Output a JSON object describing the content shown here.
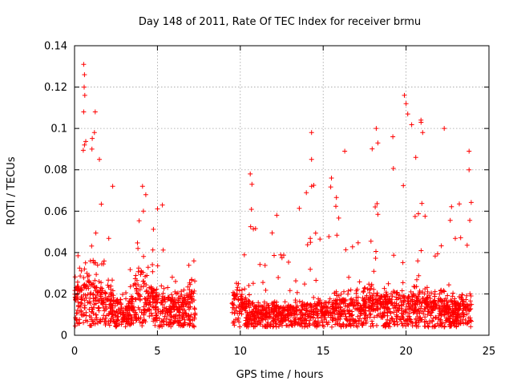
{
  "chart_data": {
    "type": "scatter",
    "title": "Day 148 of 2011, Rate Of TEC Index for receiver brmu",
    "xlabel": "GPS time / hours",
    "ylabel": "ROTI / TECUs",
    "xlim": [
      0,
      25
    ],
    "ylim": [
      0,
      0.14
    ],
    "xticks": [
      0,
      5,
      10,
      15,
      20,
      25
    ],
    "yticks": [
      0,
      0.02,
      0.04,
      0.06,
      0.08,
      0.1,
      0.12,
      0.14
    ],
    "xtick_labels": [
      "0",
      "5",
      "10",
      "15",
      "20",
      "25"
    ],
    "ytick_labels": [
      "0",
      "0.02",
      "0.04",
      "0.06",
      "0.08",
      "0.1",
      "0.12",
      "0.14"
    ],
    "grid": true,
    "marker": "+",
    "color": "#ff0000",
    "data_gap_hours": [
      7.3,
      9.5
    ],
    "notable_points": [
      {
        "x": 0.55,
        "y": 0.131
      },
      {
        "x": 0.6,
        "y": 0.126
      },
      {
        "x": 0.58,
        "y": 0.12
      },
      {
        "x": 0.62,
        "y": 0.116
      },
      {
        "x": 0.55,
        "y": 0.108
      },
      {
        "x": 1.25,
        "y": 0.108
      },
      {
        "x": 1.2,
        "y": 0.098
      },
      {
        "x": 0.6,
        "y": 0.092
      },
      {
        "x": 1.05,
        "y": 0.09
      },
      {
        "x": 1.5,
        "y": 0.085
      },
      {
        "x": 2.3,
        "y": 0.072
      },
      {
        "x": 4.1,
        "y": 0.072
      },
      {
        "x": 4.3,
        "y": 0.068
      },
      {
        "x": 5.3,
        "y": 0.063
      },
      {
        "x": 7.2,
        "y": 0.036
      },
      {
        "x": 10.6,
        "y": 0.078
      },
      {
        "x": 10.7,
        "y": 0.073
      },
      {
        "x": 12.2,
        "y": 0.058
      },
      {
        "x": 14.3,
        "y": 0.098
      },
      {
        "x": 14.3,
        "y": 0.085
      },
      {
        "x": 14.3,
        "y": 0.072
      },
      {
        "x": 15.5,
        "y": 0.076
      },
      {
        "x": 16.3,
        "y": 0.089
      },
      {
        "x": 18.2,
        "y": 0.1
      },
      {
        "x": 18.3,
        "y": 0.093
      },
      {
        "x": 19.2,
        "y": 0.096
      },
      {
        "x": 19.9,
        "y": 0.116
      },
      {
        "x": 20.0,
        "y": 0.112
      },
      {
        "x": 20.1,
        "y": 0.107
      },
      {
        "x": 20.9,
        "y": 0.104
      },
      {
        "x": 21.0,
        "y": 0.098
      },
      {
        "x": 22.3,
        "y": 0.1
      },
      {
        "x": 23.8,
        "y": 0.089
      },
      {
        "x": 23.8,
        "y": 0.08
      }
    ],
    "activity_profile": [
      {
        "x": 0.0,
        "base": 0.018,
        "spike": 0.035
      },
      {
        "x": 0.5,
        "base": 0.02,
        "spike": 0.13
      },
      {
        "x": 1.0,
        "base": 0.022,
        "spike": 0.1
      },
      {
        "x": 1.5,
        "base": 0.02,
        "spike": 0.085
      },
      {
        "x": 2.0,
        "base": 0.016,
        "spike": 0.05
      },
      {
        "x": 2.5,
        "base": 0.013,
        "spike": 0.045
      },
      {
        "x": 3.0,
        "base": 0.01,
        "spike": 0.04
      },
      {
        "x": 3.5,
        "base": 0.014,
        "spike": 0.05
      },
      {
        "x": 4.0,
        "base": 0.022,
        "spike": 0.072
      },
      {
        "x": 4.5,
        "base": 0.02,
        "spike": 0.06
      },
      {
        "x": 5.0,
        "base": 0.016,
        "spike": 0.065
      },
      {
        "x": 5.5,
        "base": 0.014,
        "spike": 0.04
      },
      {
        "x": 6.0,
        "base": 0.013,
        "spike": 0.03
      },
      {
        "x": 6.5,
        "base": 0.013,
        "spike": 0.028
      },
      {
        "x": 7.0,
        "base": 0.016,
        "spike": 0.036
      },
      {
        "x": 9.5,
        "base": 0.016,
        "spike": 0.032
      },
      {
        "x": 10.0,
        "base": 0.016,
        "spike": 0.03
      },
      {
        "x": 10.5,
        "base": 0.012,
        "spike": 0.078
      },
      {
        "x": 11.0,
        "base": 0.01,
        "spike": 0.06
      },
      {
        "x": 12.0,
        "base": 0.01,
        "spike": 0.058
      },
      {
        "x": 13.0,
        "base": 0.01,
        "spike": 0.04
      },
      {
        "x": 14.0,
        "base": 0.011,
        "spike": 0.098
      },
      {
        "x": 15.0,
        "base": 0.011,
        "spike": 0.06
      },
      {
        "x": 16.0,
        "base": 0.013,
        "spike": 0.089
      },
      {
        "x": 17.0,
        "base": 0.013,
        "spike": 0.08
      },
      {
        "x": 18.0,
        "base": 0.015,
        "spike": 0.1
      },
      {
        "x": 19.0,
        "base": 0.015,
        "spike": 0.096
      },
      {
        "x": 20.0,
        "base": 0.015,
        "spike": 0.116
      },
      {
        "x": 21.0,
        "base": 0.014,
        "spike": 0.104
      },
      {
        "x": 22.0,
        "base": 0.013,
        "spike": 0.1
      },
      {
        "x": 23.0,
        "base": 0.012,
        "spike": 0.07
      },
      {
        "x": 23.9,
        "base": 0.012,
        "spike": 0.089
      }
    ]
  }
}
